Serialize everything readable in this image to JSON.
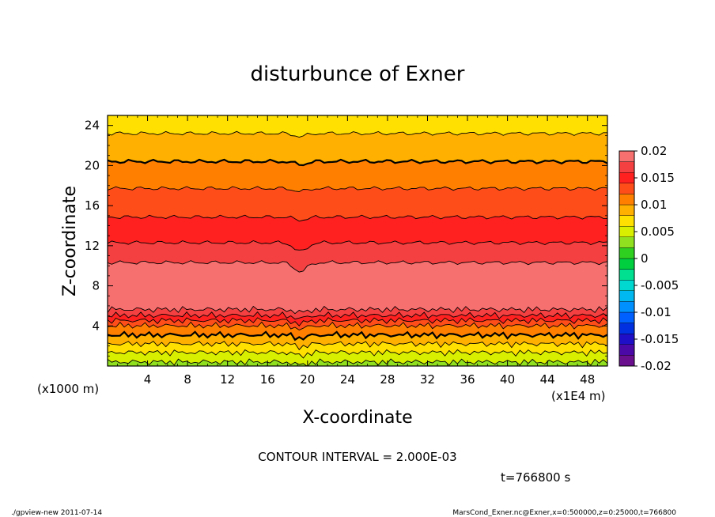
{
  "chart_data": {
    "type": "heatmap",
    "title": "disturbunce of Exner",
    "xlabel": "X-coordinate",
    "ylabel": "Z-coordinate",
    "x_unit_label": "(x1E4 m)",
    "y_unit_label": "(x1000 m)",
    "xlim": [
      0,
      50
    ],
    "ylim": [
      0,
      25
    ],
    "xticks": [
      "4",
      "8",
      "12",
      "16",
      "20",
      "24",
      "28",
      "32",
      "36",
      "40",
      "44",
      "48"
    ],
    "xtick_values": [
      4,
      8,
      12,
      16,
      20,
      24,
      28,
      32,
      36,
      40,
      44,
      48
    ],
    "yticks": [
      "4",
      "8",
      "12",
      "16",
      "20",
      "24"
    ],
    "ytick_values": [
      4,
      8,
      12,
      16,
      20,
      24
    ],
    "colorbar": {
      "ticks": [
        "0.02",
        "0.015",
        "0.01",
        "0.005",
        "0",
        "-0.005",
        "-0.01",
        "-0.015",
        "-0.02"
      ],
      "tick_values": [
        0.02,
        0.015,
        0.01,
        0.005,
        0,
        -0.005,
        -0.01,
        -0.015,
        -0.02
      ],
      "levels": [
        -0.02,
        -0.018,
        -0.016,
        -0.014,
        -0.012,
        -0.01,
        -0.008,
        -0.006,
        -0.004,
        -0.002,
        0,
        0.002,
        0.004,
        0.006,
        0.008,
        0.01,
        0.012,
        0.014,
        0.016,
        0.018,
        0.02
      ],
      "colors": [
        "#6a0f8e",
        "#4b0aa8",
        "#1f10c8",
        "#0030e0",
        "#0060ff",
        "#0090ff",
        "#00b8f0",
        "#00d8d0",
        "#00e090",
        "#00d040",
        "#30d020",
        "#90e020",
        "#d8f000",
        "#ffe000",
        "#ffb000",
        "#ff8000",
        "#ff4d1a",
        "#ff2020",
        "#f44040",
        "#f77070"
      ]
    },
    "profile": {
      "z": [
        0,
        1,
        2,
        3,
        4,
        4.8,
        5.5,
        6.5,
        8,
        9.5,
        10.5,
        11.5,
        12.5,
        14,
        16,
        18,
        20,
        22,
        23.5,
        25
      ],
      "value": [
        0.0032,
        0.0052,
        0.0075,
        0.0098,
        0.0119,
        0.015,
        0.0178,
        0.0192,
        0.0196,
        0.0189,
        0.0178,
        0.0168,
        0.0158,
        0.0146,
        0.0132,
        0.0118,
        0.0103,
        0.0088,
        0.0078,
        0.0066
      ]
    },
    "contour_interval": "CONTOUR INTERVAL = 2.000E-03"
  },
  "annotations": {
    "time": "t=766800 s",
    "footer_left": "./gpview-new   2011-07-14",
    "footer_right": "MarsCond_Exner.nc@Exner,x=0:500000,z=0:25000,t=766800"
  }
}
